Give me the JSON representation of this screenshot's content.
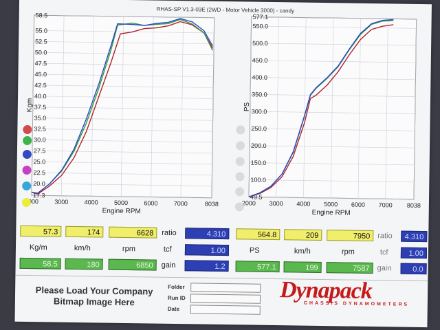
{
  "header": {
    "title": "RHAS-SP V1.3-03E  (2WD - Motor Vehicle 3000) - candy"
  },
  "colors": {
    "red": "#b0222a",
    "green": "#2f9e3a",
    "blue": "#2b44c9",
    "teal": "#3aa9b8"
  },
  "left_chart": {
    "ylabel": "Kgm",
    "xlabel": "Engine RPM",
    "y_ticks": [
      "58.5",
      "55.0",
      "52.5",
      "50.0",
      "47.5",
      "45.0",
      "42.5",
      "40.0",
      "37.5",
      "35.0",
      "32.5",
      "30.0",
      "27.5",
      "25.0",
      "22.5",
      "20.0",
      "17.3"
    ],
    "x_ticks": [
      "2000",
      "3000",
      "4000",
      "5000",
      "6000",
      "7000",
      "8038"
    ],
    "legend_dots": [
      "red",
      "green",
      "blue",
      "magenta",
      "cyan",
      "yellow"
    ]
  },
  "right_chart": {
    "ylabel": "PS",
    "xlabel": "Engine RPM",
    "y_ticks": [
      "577.1",
      "550.0",
      "500.0",
      "450.0",
      "400.0",
      "350.0",
      "300.0",
      "250.0",
      "200.0",
      "150.0",
      "100.0",
      "49.5"
    ],
    "x_ticks": [
      "2000",
      "3000",
      "4000",
      "5000",
      "6000",
      "7000",
      "8038"
    ]
  },
  "chart_data": [
    {
      "type": "line",
      "xlabel": "Engine RPM",
      "ylabel": "Kgm",
      "xlim": [
        2000,
        8038
      ],
      "ylim": [
        17.3,
        58.5
      ],
      "series": [
        {
          "color": "red",
          "x": [
            2000,
            2200,
            2600,
            3000,
            3400,
            3800,
            4200,
            4600,
            4900,
            5300,
            5700,
            6100,
            6500,
            6900,
            7300,
            7700,
            8000
          ],
          "values": [
            18.0,
            17.6,
            19.5,
            22.0,
            26.0,
            32.0,
            40.0,
            48.0,
            54.5,
            55.0,
            55.8,
            56.0,
            56.5,
            57.5,
            56.8,
            55.0,
            51.5
          ]
        },
        {
          "color": "green",
          "x": [
            2000,
            2200,
            2600,
            3000,
            3400,
            3800,
            4200,
            4600,
            4800,
            5300,
            5700,
            6100,
            6500,
            6900,
            7300,
            7700,
            8000
          ],
          "values": [
            18.0,
            17.8,
            20.0,
            23.0,
            27.5,
            34.0,
            42.0,
            51.0,
            56.5,
            57.0,
            56.5,
            56.8,
            57.0,
            58.0,
            57.0,
            55.0,
            51.0
          ]
        },
        {
          "color": "blue",
          "x": [
            2000,
            2200,
            2600,
            3000,
            3400,
            3800,
            4200,
            4600,
            4800,
            5300,
            5700,
            6100,
            6500,
            6900,
            7300,
            7700,
            8000
          ],
          "values": [
            18.0,
            17.8,
            20.0,
            23.2,
            28.0,
            35.0,
            43.0,
            52.0,
            56.8,
            56.7,
            56.5,
            57.0,
            57.3,
            58.2,
            57.5,
            55.5,
            52.0
          ]
        }
      ]
    },
    {
      "type": "line",
      "xlabel": "Engine RPM",
      "ylabel": "PS",
      "xlim": [
        2000,
        8038
      ],
      "ylim": [
        49.5,
        577.1
      ],
      "series": [
        {
          "color": "red",
          "x": [
            2000,
            2400,
            2800,
            3200,
            3600,
            4000,
            4200,
            4400,
            4800,
            5200,
            5600,
            6000,
            6400,
            6800,
            7200
          ],
          "values": [
            50,
            60,
            78,
            110,
            170,
            270,
            340,
            350,
            380,
            420,
            470,
            515,
            545,
            555,
            560
          ]
        },
        {
          "color": "green",
          "x": [
            2000,
            2400,
            2800,
            3200,
            3600,
            4000,
            4200,
            4400,
            4800,
            5200,
            5600,
            6000,
            6400,
            6800,
            7200
          ],
          "values": [
            50,
            62,
            82,
            118,
            182,
            290,
            350,
            370,
            400,
            435,
            485,
            530,
            560,
            570,
            572
          ]
        },
        {
          "color": "blue",
          "x": [
            2000,
            2400,
            2800,
            3200,
            3600,
            4000,
            4200,
            4400,
            4800,
            5200,
            5600,
            6000,
            6400,
            6800,
            7200
          ],
          "values": [
            50,
            62,
            82,
            118,
            184,
            292,
            352,
            372,
            402,
            437,
            487,
            533,
            562,
            572,
            575
          ]
        }
      ]
    }
  ],
  "readouts": {
    "left": {
      "row1": {
        "kgm": "57.3",
        "kmh": "174",
        "rpm": "6628",
        "ratio_label": "ratio",
        "ratio": "4.310"
      },
      "units": {
        "kgm": "Kg/m",
        "kmh": "km/h",
        "rpm": "rpm",
        "tcf_label": "tcf",
        "tcf": "1.00"
      },
      "row3": {
        "kgm": "58.5",
        "kmh": "180",
        "rpm": "6850",
        "gain_label": "gain",
        "gain": "1.2"
      }
    },
    "right": {
      "row1": {
        "ps": "564.8",
        "kmh": "209",
        "rpm": "7950",
        "ratio_label": "ratio",
        "ratio": "4.310"
      },
      "units": {
        "ps": "PS",
        "kmh": "km/h",
        "rpm": "rpm",
        "tcf_label": "tcf",
        "tcf": "1.00"
      },
      "row3": {
        "ps": "577.1",
        "kmh": "199",
        "rpm": "7587",
        "gain_label": "gain",
        "gain": "0.0"
      }
    }
  },
  "footer": {
    "company_line1": "Please Load Your Company",
    "company_line2": "Bitmap Image Here",
    "folder_label": "Folder",
    "runid_label": "Run ID",
    "date_label": "Date",
    "logo": "Dynapack",
    "logo_sub": "CHASSIS DYNAMOMETERS"
  }
}
